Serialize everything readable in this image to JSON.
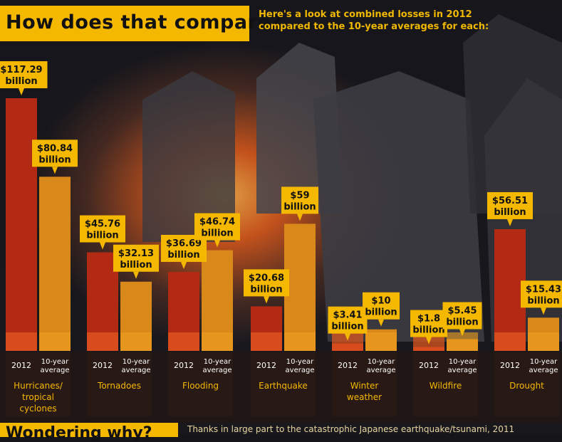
{
  "header": {
    "title": "How does that compare?",
    "subtitle_line1": "Here's a look at combined losses in 2012",
    "subtitle_line2": "compared to the 10-year averages for each:"
  },
  "footer": {
    "title": "Wondering why?",
    "text": "Thanks in large part to the catastrophic Japanese earthquake/tsunami, 2011"
  },
  "colors": {
    "accent": "#f5b800",
    "bar_2012": "#b32a14",
    "bar_avg": "#d9881a",
    "label_bg": "#f5b800"
  },
  "chart_data": {
    "type": "bar",
    "title": "How does that compare?",
    "unit": "billion",
    "ylim": [
      0,
      120
    ],
    "series_labels": [
      "2012",
      "10-year average"
    ],
    "categories": [
      {
        "name": "Hurricanes/ tropical cyclones",
        "name_lines": [
          "Hurricanes/",
          "tropical",
          "cyclones"
        ],
        "y2012": 117.29,
        "yavg": 80.84,
        "label2012": "$117.29",
        "labelavg": "$80.84"
      },
      {
        "name": "Tornadoes",
        "name_lines": [
          "Tornadoes"
        ],
        "y2012": 45.76,
        "yavg": 32.13,
        "label2012": "$45.76",
        "labelavg": "$32.13"
      },
      {
        "name": "Flooding",
        "name_lines": [
          "Flooding"
        ],
        "y2012": 36.69,
        "yavg": 46.74,
        "label2012": "$36.69",
        "labelavg": "$46.74"
      },
      {
        "name": "Earthquake",
        "name_lines": [
          "Earthquake"
        ],
        "y2012": 20.68,
        "yavg": 59,
        "label2012": "$20.68",
        "labelavg": "$59"
      },
      {
        "name": "Winter weather",
        "name_lines": [
          "Winter",
          "weather"
        ],
        "y2012": 3.41,
        "yavg": 10,
        "label2012": "$3.41",
        "labelavg": "$10"
      },
      {
        "name": "Wildfire",
        "name_lines": [
          "Wildfire"
        ],
        "y2012": 1.8,
        "yavg": 5.45,
        "label2012": "$1.8",
        "labelavg": "$5.45"
      },
      {
        "name": "Drought",
        "name_lines": [
          "Drought"
        ],
        "y2012": 56.51,
        "yavg": 15.43,
        "label2012": "$56.51",
        "labelavg": "$15.43"
      }
    ]
  }
}
